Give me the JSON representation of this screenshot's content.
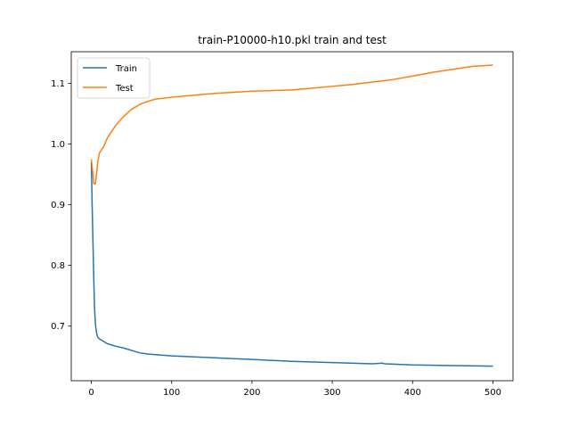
{
  "chart_data": {
    "type": "line",
    "title": "train-P10000-h10.pkl train and test",
    "xlabel": "",
    "ylabel": "",
    "xlim": [
      -25,
      525
    ],
    "ylim": [
      0.61,
      1.152
    ],
    "xticks": [
      0,
      100,
      200,
      300,
      400,
      500
    ],
    "yticks": [
      0.7,
      0.8,
      0.9,
      1.0,
      1.1
    ],
    "xtick_labels": [
      "0",
      "100",
      "200",
      "300",
      "400",
      "500"
    ],
    "ytick_labels": [
      "0.7",
      "0.8",
      "0.9",
      "1.0",
      "1.1"
    ],
    "grid": false,
    "legend_position": "top-left",
    "series": [
      {
        "name": "Train",
        "color": "#1f77b4",
        "points": [
          [
            0,
            0.97
          ],
          [
            1,
            0.9
          ],
          [
            2,
            0.84
          ],
          [
            3,
            0.78
          ],
          [
            4,
            0.73
          ],
          [
            5,
            0.705
          ],
          [
            6,
            0.693
          ],
          [
            7,
            0.686
          ],
          [
            8,
            0.682
          ],
          [
            10,
            0.679
          ],
          [
            15,
            0.675
          ],
          [
            20,
            0.671
          ],
          [
            30,
            0.667
          ],
          [
            40,
            0.664
          ],
          [
            50,
            0.66
          ],
          [
            60,
            0.656
          ],
          [
            70,
            0.654
          ],
          [
            80,
            0.653
          ],
          [
            100,
            0.651
          ],
          [
            150,
            0.648
          ],
          [
            200,
            0.645
          ],
          [
            250,
            0.642
          ],
          [
            300,
            0.64
          ],
          [
            350,
            0.638
          ],
          [
            362,
            0.639
          ],
          [
            365,
            0.638
          ],
          [
            400,
            0.636
          ],
          [
            450,
            0.635
          ],
          [
            500,
            0.634
          ]
        ]
      },
      {
        "name": "Test",
        "color": "#ff7f0e",
        "points": [
          [
            0,
            0.975
          ],
          [
            2,
            0.95
          ],
          [
            3,
            0.935
          ],
          [
            5,
            0.934
          ],
          [
            6,
            0.945
          ],
          [
            8,
            0.97
          ],
          [
            10,
            0.985
          ],
          [
            15,
            0.995
          ],
          [
            20,
            1.01
          ],
          [
            30,
            1.03
          ],
          [
            40,
            1.045
          ],
          [
            50,
            1.057
          ],
          [
            60,
            1.065
          ],
          [
            70,
            1.07
          ],
          [
            80,
            1.074
          ],
          [
            100,
            1.077
          ],
          [
            125,
            1.08
          ],
          [
            150,
            1.083
          ],
          [
            175,
            1.085
          ],
          [
            200,
            1.087
          ],
          [
            225,
            1.088
          ],
          [
            250,
            1.089
          ],
          [
            275,
            1.092
          ],
          [
            300,
            1.095
          ],
          [
            325,
            1.098
          ],
          [
            350,
            1.102
          ],
          [
            375,
            1.106
          ],
          [
            400,
            1.112
          ],
          [
            425,
            1.118
          ],
          [
            450,
            1.123
          ],
          [
            475,
            1.128
          ],
          [
            500,
            1.13
          ]
        ]
      }
    ]
  }
}
